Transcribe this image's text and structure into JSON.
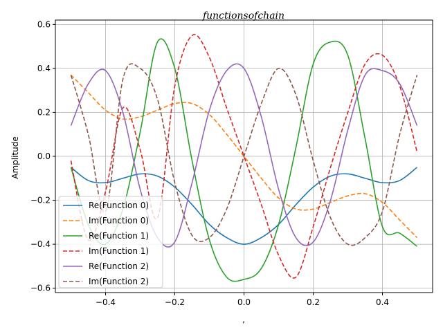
{
  "chart_data": {
    "type": "line",
    "title": "functionsofchain",
    "xlabel": ",",
    "ylabel": "Amplitude",
    "xlim": [
      -0.545,
      0.545
    ],
    "ylim": [
      -0.62,
      0.62
    ],
    "xticks": [
      -0.4,
      -0.2,
      0.0,
      0.2,
      0.4
    ],
    "yticks": [
      -0.6,
      -0.4,
      -0.2,
      0.0,
      0.2,
      0.4,
      0.6
    ],
    "xtick_labels": [
      "−0.4",
      "−0.2",
      "0.0",
      "0.2",
      "0.4"
    ],
    "ytick_labels": [
      "−0.6",
      "−0.4",
      "−0.2",
      "0.0",
      "0.2",
      "0.4",
      "0.6"
    ],
    "grid": true,
    "legend_position": "lower-left",
    "x": [
      -0.5,
      -0.45,
      -0.4,
      -0.35,
      -0.3,
      -0.25,
      -0.2,
      -0.15,
      -0.1,
      -0.05,
      0.0,
      0.05,
      0.1,
      0.15,
      0.2,
      0.25,
      0.3,
      0.35,
      0.4,
      0.45,
      0.5
    ],
    "series": [
      {
        "name": "Re(Function 0)",
        "color": "#1f77b4",
        "dash": "solid",
        "values": [
          -0.05,
          -0.11,
          -0.12,
          -0.1,
          -0.08,
          -0.09,
          -0.14,
          -0.22,
          -0.31,
          -0.37,
          -0.4,
          -0.37,
          -0.31,
          -0.22,
          -0.14,
          -0.09,
          -0.08,
          -0.1,
          -0.12,
          -0.11,
          -0.05
        ]
      },
      {
        "name": "Im(Function 0)",
        "color": "#ff7f0e",
        "dash": "dashed",
        "values": [
          0.37,
          0.29,
          0.21,
          0.17,
          0.18,
          0.21,
          0.24,
          0.24,
          0.19,
          0.1,
          0.0,
          -0.1,
          -0.19,
          -0.24,
          -0.24,
          -0.21,
          -0.18,
          -0.17,
          -0.21,
          -0.29,
          -0.37
        ]
      },
      {
        "name": "Re(Function 1)",
        "color": "#2ca02c",
        "dash": "solid",
        "values": [
          -0.05,
          -0.31,
          -0.4,
          -0.24,
          0.11,
          0.52,
          0.4,
          -0.02,
          -0.38,
          -0.55,
          -0.56,
          -0.51,
          -0.31,
          0.04,
          0.42,
          0.52,
          0.46,
          0.08,
          -0.32,
          -0.35,
          -0.41
        ]
      },
      {
        "name": "Im(Function 1)",
        "color": "#d62728",
        "dash": "dashed",
        "values": [
          -0.02,
          -0.38,
          -0.16,
          0.22,
          0.03,
          -0.28,
          0.32,
          0.55,
          0.45,
          0.22,
          0.0,
          -0.22,
          -0.45,
          -0.55,
          -0.32,
          -0.05,
          0.2,
          0.42,
          0.46,
          0.32,
          0.02
        ]
      },
      {
        "name": "Re(Function 2)",
        "color": "#9467bd",
        "dash": "solid",
        "values": [
          0.14,
          0.33,
          0.39,
          0.2,
          -0.15,
          -0.37,
          -0.39,
          -0.12,
          0.21,
          0.39,
          0.4,
          0.18,
          -0.15,
          -0.37,
          -0.39,
          -0.2,
          0.12,
          0.37,
          0.39,
          0.33,
          0.14
        ]
      },
      {
        "name": "Im(Function 2)",
        "color": "#8c564b",
        "dash": "dashed",
        "values": [
          0.37,
          0.1,
          -0.25,
          0.35,
          0.4,
          0.26,
          -0.12,
          -0.36,
          -0.37,
          -0.24,
          0.0,
          0.24,
          0.4,
          0.28,
          -0.02,
          -0.28,
          -0.4,
          -0.37,
          -0.25,
          0.1,
          0.37
        ]
      }
    ]
  }
}
